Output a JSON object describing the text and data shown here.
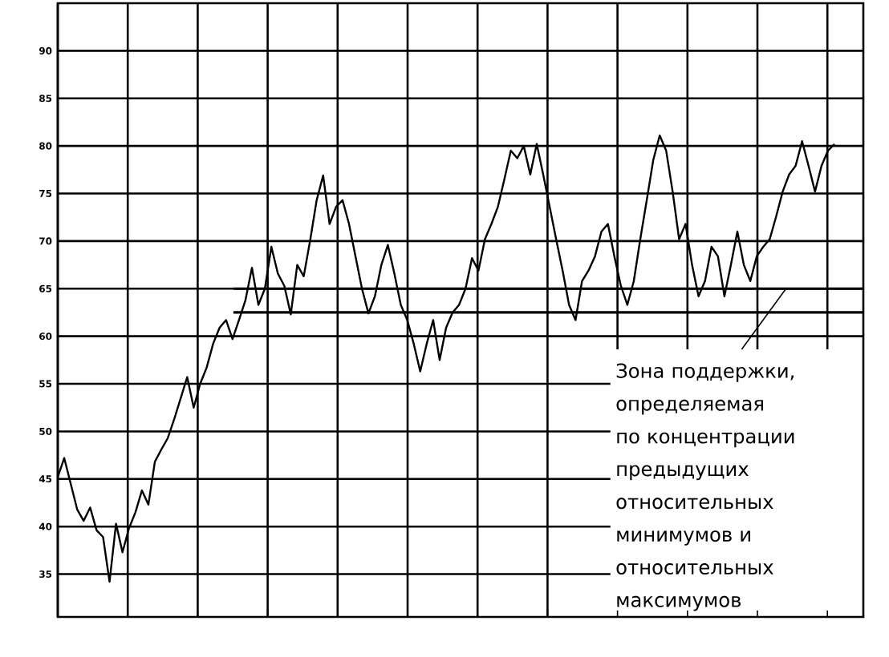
{
  "chart_data": {
    "type": "line",
    "color": "#000000",
    "values": [
      45.2,
      47.2,
      44.5,
      41.8,
      40.6,
      42,
      39.6,
      38.9,
      34.2,
      40.3,
      37.3,
      39.8,
      41.5,
      43.8,
      42.3,
      46.8,
      48.1,
      49.3,
      51.3,
      53.5,
      55.7,
      52.5,
      55,
      56.7,
      59.2,
      60.9,
      61.7,
      59.7,
      61.7,
      63.8,
      67.2,
      63.3,
      65,
      69.4,
      66.6,
      65.3,
      62.3,
      67.5,
      66.3,
      70.1,
      74.3,
      76.9,
      71.8,
      73.6,
      74.3,
      71.8,
      68.4,
      65,
      62.4,
      64.2,
      67.5,
      69.6,
      66.6,
      63.3,
      61.7,
      59.2,
      56.3,
      59.2,
      61.7,
      57.5,
      60.9,
      62.5,
      63.3,
      65,
      68.2,
      66.9,
      70.2,
      71.8,
      73.6,
      76.5,
      79.5,
      78.7,
      80,
      77,
      80.2,
      77,
      73.6,
      70.2,
      66.9,
      63.3,
      61.7,
      65.8,
      66.9,
      68.4,
      71,
      71.8,
      68.4,
      65.3,
      63.3,
      65.8,
      70.2,
      74.3,
      78.5,
      81.1,
      79.5,
      75.2,
      70.2,
      71.8,
      67.5,
      64.2,
      65.8,
      69.4,
      68.4,
      64.2,
      67.5,
      71,
      67.5,
      65.8,
      68.4,
      69.4,
      70.2,
      72.6,
      75.2,
      77,
      77.9,
      80.5,
      77.9,
      75.2,
      77.9,
      79.5,
      80.2
    ],
    "ylim": [
      30.5,
      95
    ],
    "yticks": [
      35,
      40,
      45,
      50,
      55,
      60,
      65,
      70,
      75,
      80,
      85,
      90
    ],
    "grid": true,
    "tick_labels": "y",
    "ref_lines": [
      {
        "axis": "y",
        "value": 65
      },
      {
        "axis": "y",
        "value": 62.5
      }
    ],
    "annotations": [
      "Зона поддержки, определяемая по концентрации предыдущих относительных минимумов и относительных максимумов"
    ]
  }
}
